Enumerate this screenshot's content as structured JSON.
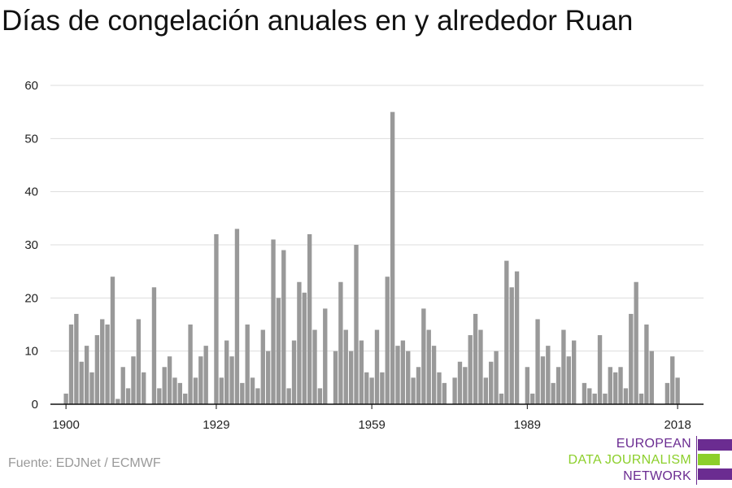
{
  "title": "Días de congelación anuales en y alrededor Ruan",
  "source": "Fuente: EDJNet / ECMWF",
  "logo": {
    "lines": [
      "EUROPEAN",
      "DATA JOURNALISM",
      "NETWORK"
    ],
    "colors": [
      "#6b2c91",
      "#8ccf2b",
      "#6b2c91"
    ]
  },
  "chart_data": {
    "type": "bar",
    "title": "Días de congelación anuales en y alrededor Ruan",
    "xlabel": "",
    "ylabel": "",
    "ylim": [
      0,
      60
    ],
    "yticks": [
      0,
      10,
      20,
      30,
      40,
      50,
      60
    ],
    "xlim": [
      1897,
      2023
    ],
    "xticks": [
      1900,
      1929,
      1959,
      1989,
      2018
    ],
    "grid": true,
    "bar_color": "#999999",
    "grid_color": "#dddddd",
    "x": [
      1900,
      1901,
      1902,
      1903,
      1904,
      1905,
      1906,
      1907,
      1908,
      1909,
      1910,
      1911,
      1912,
      1913,
      1914,
      1915,
      1916,
      1917,
      1918,
      1919,
      1920,
      1921,
      1922,
      1923,
      1924,
      1925,
      1926,
      1927,
      1928,
      1929,
      1930,
      1931,
      1932,
      1933,
      1934,
      1935,
      1936,
      1937,
      1938,
      1939,
      1940,
      1941,
      1942,
      1943,
      1944,
      1945,
      1946,
      1947,
      1948,
      1949,
      1950,
      1951,
      1952,
      1953,
      1954,
      1955,
      1956,
      1957,
      1958,
      1959,
      1960,
      1961,
      1962,
      1963,
      1964,
      1965,
      1966,
      1967,
      1968,
      1969,
      1970,
      1971,
      1972,
      1973,
      1974,
      1975,
      1976,
      1977,
      1978,
      1979,
      1980,
      1981,
      1982,
      1983,
      1984,
      1985,
      1986,
      1987,
      1988,
      1989,
      1990,
      1991,
      1992,
      1993,
      1994,
      1995,
      1996,
      1997,
      1998,
      1999,
      2000,
      2001,
      2002,
      2003,
      2004,
      2005,
      2006,
      2007,
      2008,
      2009,
      2010,
      2011,
      2012,
      2013,
      2014,
      2015,
      2016,
      2017,
      2018
    ],
    "values": [
      2,
      15,
      17,
      8,
      11,
      6,
      13,
      16,
      15,
      24,
      1,
      7,
      3,
      9,
      16,
      6,
      0,
      22,
      3,
      7,
      9,
      5,
      4,
      2,
      15,
      5,
      9,
      11,
      0,
      32,
      5,
      12,
      9,
      33,
      4,
      15,
      5,
      3,
      14,
      10,
      31,
      20,
      29,
      3,
      12,
      23,
      21,
      32,
      14,
      3,
      18,
      0,
      10,
      23,
      14,
      10,
      30,
      12,
      6,
      5,
      14,
      6,
      24,
      55,
      11,
      12,
      10,
      5,
      7,
      18,
      14,
      11,
      6,
      4,
      0,
      5,
      8,
      7,
      13,
      17,
      14,
      5,
      8,
      10,
      2,
      27,
      22,
      25,
      0,
      7,
      2,
      16,
      9,
      11,
      4,
      7,
      14,
      9,
      12,
      0,
      4,
      3,
      2,
      13,
      2,
      7,
      6,
      7,
      3,
      17,
      23,
      2,
      15,
      10,
      0,
      0,
      4,
      9,
      5
    ]
  }
}
